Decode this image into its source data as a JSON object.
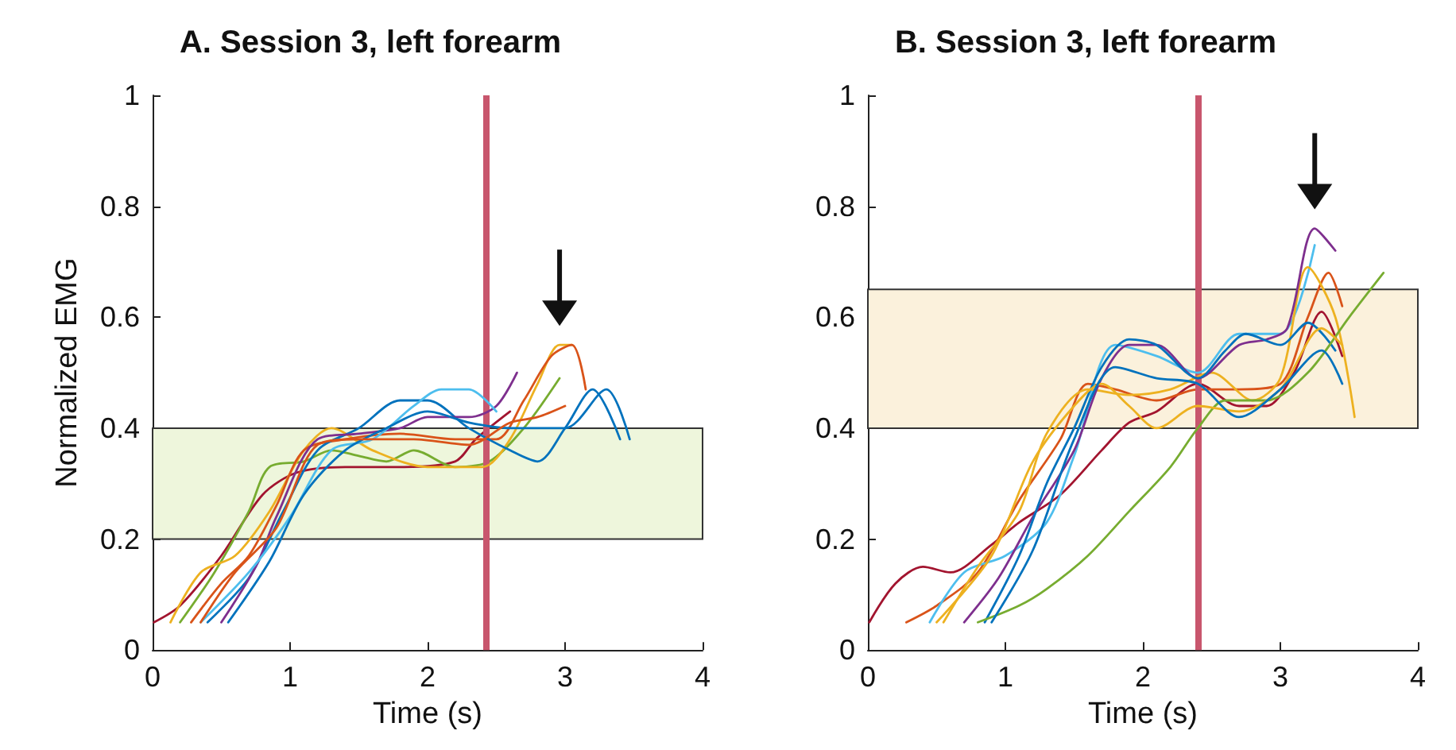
{
  "chart_data": [
    {
      "type": "line",
      "title": "A. Session 3, left forearm",
      "xlabel": "Time (s)",
      "ylabel": "Normalized EMG",
      "xlim": [
        0,
        4
      ],
      "xticks": [
        0,
        1,
        2,
        3,
        4
      ],
      "ylim": [
        0,
        1
      ],
      "yticks": [
        0,
        0.2,
        0.4,
        0.6,
        0.8,
        1
      ],
      "grid": false,
      "marker": "none",
      "line_style": "solid",
      "bands": [
        {
          "axis": "y",
          "from": 0.2,
          "to": 0.4,
          "color": "#eef6dc"
        }
      ],
      "ref_lines": [
        {
          "axis": "x",
          "value": 2.42,
          "color": "#c8566d"
        }
      ],
      "series": [
        {
          "color": "#a2142f",
          "x": [
            0.01,
            0.2,
            0.5,
            0.8,
            1.05,
            1.4,
            1.8,
            2.2,
            2.35,
            2.6
          ],
          "values": [
            0.05,
            0.08,
            0.17,
            0.28,
            0.32,
            0.33,
            0.33,
            0.34,
            0.38,
            0.43
          ]
        },
        {
          "color": "#77ac30",
          "x": [
            0.2,
            0.45,
            0.7,
            0.85,
            1.1,
            1.3,
            1.5,
            1.7,
            1.9,
            2.2,
            2.45,
            2.7,
            2.96
          ],
          "values": [
            0.05,
            0.14,
            0.25,
            0.33,
            0.34,
            0.36,
            0.35,
            0.34,
            0.36,
            0.33,
            0.34,
            0.4,
            0.49
          ]
        },
        {
          "color": "#edb120",
          "x": [
            0.13,
            0.35,
            0.6,
            0.85,
            1.1,
            1.3,
            1.6,
            2.0,
            2.4,
            2.6,
            2.8,
            2.96,
            3.05
          ],
          "values": [
            0.05,
            0.14,
            0.17,
            0.25,
            0.36,
            0.4,
            0.36,
            0.33,
            0.33,
            0.38,
            0.48,
            0.55,
            0.55
          ]
        },
        {
          "color": "#d95319",
          "x": [
            0.28,
            0.5,
            0.7,
            0.9,
            1.1,
            1.4,
            1.8,
            2.2,
            2.5,
            2.7,
            2.9,
            3.05,
            3.15
          ],
          "values": [
            0.05,
            0.12,
            0.17,
            0.26,
            0.36,
            0.38,
            0.39,
            0.38,
            0.38,
            0.45,
            0.53,
            0.55,
            0.47
          ]
        },
        {
          "color": "#0072bd",
          "x": [
            0.4,
            0.7,
            0.95,
            1.2,
            1.5,
            1.8,
            2.0,
            2.3,
            2.6,
            2.8,
            3.0,
            3.2,
            3.4
          ],
          "values": [
            0.05,
            0.13,
            0.25,
            0.36,
            0.4,
            0.45,
            0.45,
            0.4,
            0.36,
            0.34,
            0.4,
            0.47,
            0.38
          ]
        },
        {
          "color": "#7e2f8e",
          "x": [
            0.5,
            0.75,
            0.9,
            1.2,
            1.5,
            1.8,
            2.0,
            2.3,
            2.5,
            2.65
          ],
          "values": [
            0.05,
            0.15,
            0.24,
            0.38,
            0.39,
            0.4,
            0.42,
            0.42,
            0.44,
            0.5
          ]
        },
        {
          "color": "#4dbeee",
          "x": [
            0.35,
            0.7,
            1.0,
            1.3,
            1.6,
            1.9,
            2.1,
            2.3,
            2.5
          ],
          "values": [
            0.05,
            0.14,
            0.24,
            0.36,
            0.38,
            0.44,
            0.47,
            0.47,
            0.43
          ]
        },
        {
          "color": "#0072bd",
          "x": [
            0.55,
            0.85,
            1.1,
            1.4,
            1.7,
            2.0,
            2.3,
            2.6,
            3.0,
            3.3,
            3.47
          ],
          "values": [
            0.05,
            0.16,
            0.28,
            0.36,
            0.4,
            0.43,
            0.41,
            0.4,
            0.4,
            0.47,
            0.38
          ]
        },
        {
          "color": "#d95319",
          "x": [
            0.35,
            0.6,
            0.9,
            1.2,
            1.5,
            1.9,
            2.3,
            2.6,
            2.8,
            3.0
          ],
          "values": [
            0.05,
            0.14,
            0.22,
            0.37,
            0.38,
            0.38,
            0.37,
            0.41,
            0.42,
            0.44
          ]
        }
      ]
    },
    {
      "type": "line",
      "title": "B. Session 3, left forearm",
      "xlabel": "Time (s)",
      "xlim": [
        0,
        4
      ],
      "xticks": [
        0,
        1,
        2,
        3,
        4
      ],
      "ylim": [
        0,
        1
      ],
      "yticks": [
        0,
        0.2,
        0.4,
        0.6,
        0.8,
        1
      ],
      "grid": false,
      "marker": "none",
      "line_style": "solid",
      "bands": [
        {
          "axis": "y",
          "from": 0.4,
          "to": 0.65,
          "color": "#fbf1dc"
        }
      ],
      "ref_lines": [
        {
          "axis": "x",
          "value": 2.4,
          "color": "#c8566d"
        }
      ],
      "series": [
        {
          "color": "#a2142f",
          "x": [
            0.01,
            0.2,
            0.4,
            0.6,
            0.9,
            1.1,
            1.4,
            1.7,
            1.9,
            2.1,
            2.4,
            2.7,
            2.9,
            3.1,
            3.3,
            3.45
          ],
          "values": [
            0.05,
            0.12,
            0.15,
            0.14,
            0.19,
            0.23,
            0.28,
            0.36,
            0.41,
            0.43,
            0.48,
            0.44,
            0.44,
            0.5,
            0.61,
            0.53
          ]
        },
        {
          "color": "#d95319",
          "x": [
            0.28,
            0.5,
            0.8,
            1.1,
            1.4,
            1.6,
            1.8,
            2.1,
            2.4,
            2.7,
            3.0,
            3.2,
            3.35,
            3.45
          ],
          "values": [
            0.05,
            0.08,
            0.14,
            0.27,
            0.38,
            0.48,
            0.47,
            0.45,
            0.47,
            0.47,
            0.48,
            0.6,
            0.68,
            0.62
          ]
        },
        {
          "color": "#4dbeee",
          "x": [
            0.45,
            0.7,
            1.0,
            1.3,
            1.5,
            1.8,
            2.1,
            2.4,
            2.7,
            3.0,
            3.25
          ],
          "values": [
            0.05,
            0.14,
            0.17,
            0.23,
            0.35,
            0.55,
            0.53,
            0.5,
            0.57,
            0.57,
            0.73
          ]
        },
        {
          "color": "#edb120",
          "x": [
            0.55,
            0.8,
            1.1,
            1.3,
            1.6,
            1.9,
            2.2,
            2.5,
            2.8,
            3.0,
            3.2,
            3.4,
            3.54
          ],
          "values": [
            0.05,
            0.15,
            0.25,
            0.39,
            0.47,
            0.46,
            0.47,
            0.5,
            0.45,
            0.49,
            0.69,
            0.6,
            0.42
          ]
        },
        {
          "color": "#7e2f8e",
          "x": [
            0.7,
            0.95,
            1.2,
            1.5,
            1.7,
            1.9,
            2.1,
            2.4,
            2.7,
            2.9,
            3.05,
            3.25,
            3.4
          ],
          "values": [
            0.05,
            0.13,
            0.24,
            0.36,
            0.49,
            0.55,
            0.55,
            0.49,
            0.55,
            0.56,
            0.58,
            0.76,
            0.72
          ]
        },
        {
          "color": "#0072bd",
          "x": [
            0.85,
            1.1,
            1.3,
            1.5,
            1.7,
            1.9,
            2.1,
            2.4,
            2.6,
            2.75,
            3.0,
            3.2,
            3.4
          ],
          "values": [
            0.05,
            0.17,
            0.3,
            0.4,
            0.51,
            0.56,
            0.55,
            0.49,
            0.54,
            0.57,
            0.55,
            0.59,
            0.54
          ]
        },
        {
          "color": "#77ac30",
          "x": [
            0.8,
            1.1,
            1.3,
            1.6,
            1.9,
            2.2,
            2.4,
            2.6,
            2.9,
            3.2,
            3.5,
            3.75
          ],
          "values": [
            0.05,
            0.08,
            0.11,
            0.17,
            0.25,
            0.33,
            0.4,
            0.45,
            0.45,
            0.5,
            0.6,
            0.68
          ]
        },
        {
          "color": "#edb120",
          "x": [
            0.5,
            0.9,
            1.2,
            1.5,
            1.7,
            1.9,
            2.1,
            2.4,
            2.7,
            3.0,
            3.3,
            3.45
          ],
          "values": [
            0.05,
            0.17,
            0.34,
            0.44,
            0.48,
            0.44,
            0.4,
            0.44,
            0.43,
            0.47,
            0.58,
            0.55
          ]
        },
        {
          "color": "#0072bd",
          "x": [
            0.9,
            1.2,
            1.5,
            1.8,
            2.1,
            2.4,
            2.7,
            3.0,
            3.3,
            3.45
          ],
          "values": [
            0.05,
            0.18,
            0.38,
            0.51,
            0.49,
            0.48,
            0.42,
            0.47,
            0.54,
            0.48
          ]
        }
      ]
    }
  ]
}
